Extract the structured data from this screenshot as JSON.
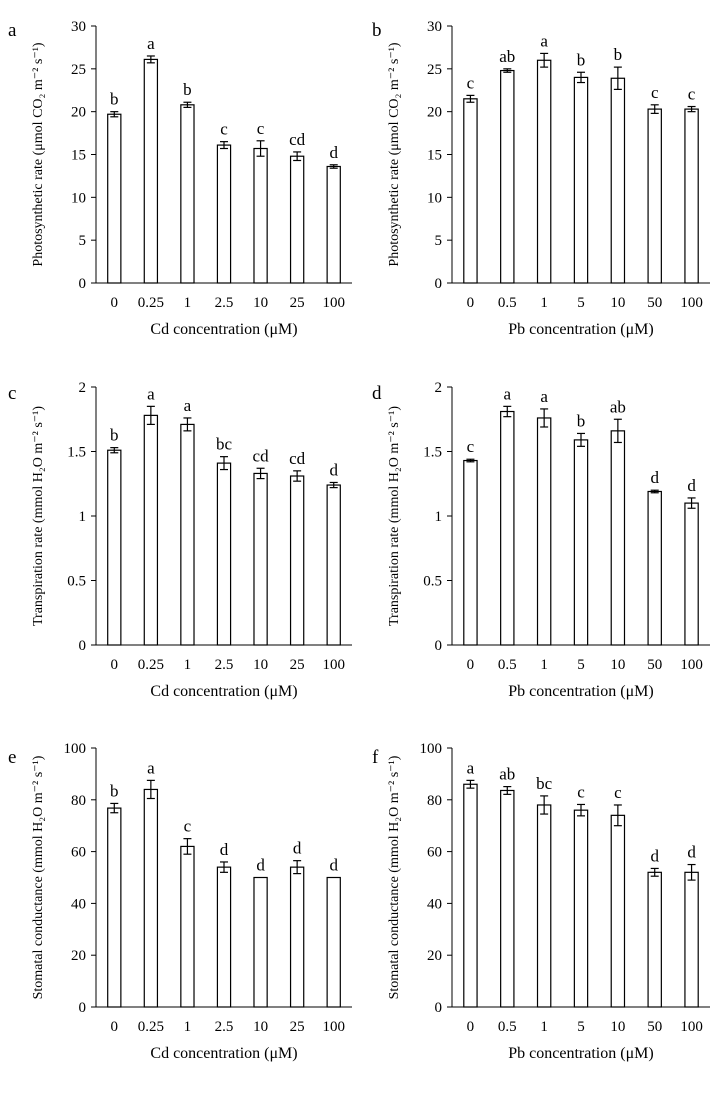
{
  "chart_data": [
    {
      "panel": "a",
      "type": "bar",
      "categories": [
        "0",
        "0.25",
        "1",
        "2.5",
        "10",
        "25",
        "100"
      ],
      "values": [
        19.7,
        26.1,
        20.8,
        16.1,
        15.7,
        14.8,
        13.6
      ],
      "errors": [
        0.3,
        0.4,
        0.3,
        0.4,
        0.9,
        0.5,
        0.2
      ],
      "letters": [
        "b",
        "a",
        "b",
        "c",
        "c",
        "cd",
        "d"
      ],
      "xlabel": "Cd concentration (μM)",
      "ylabel": "Photosynthetic rate (μmol CO₂ m⁻² s⁻¹)",
      "ylim": [
        0,
        30
      ],
      "yticks": [
        0,
        5,
        10,
        15,
        20,
        25,
        30
      ],
      "ytick_labels": [
        "0",
        "5",
        "10",
        "15",
        "20",
        "25",
        "30"
      ]
    },
    {
      "panel": "b",
      "type": "bar",
      "categories": [
        "0",
        "0.5",
        "1",
        "5",
        "10",
        "50",
        "100"
      ],
      "values": [
        21.5,
        24.8,
        26.0,
        24.0,
        23.9,
        20.3,
        20.3
      ],
      "errors": [
        0.4,
        0.2,
        0.8,
        0.6,
        1.3,
        0.5,
        0.3
      ],
      "letters": [
        "c",
        "ab",
        "a",
        "b",
        "b",
        "c",
        "c"
      ],
      "xlabel": "Pb concentration (μM)",
      "ylabel": "Photosynthetic rate (μmol CO₂ m⁻² s⁻¹)",
      "ylim": [
        0,
        30
      ],
      "yticks": [
        0,
        5,
        10,
        15,
        20,
        25,
        30
      ],
      "ytick_labels": [
        "0",
        "5",
        "10",
        "15",
        "20",
        "25",
        "30"
      ]
    },
    {
      "panel": "c",
      "type": "bar",
      "categories": [
        "0",
        "0.25",
        "1",
        "2.5",
        "10",
        "25",
        "100"
      ],
      "values": [
        1.51,
        1.78,
        1.71,
        1.41,
        1.33,
        1.31,
        1.24
      ],
      "errors": [
        0.02,
        0.07,
        0.05,
        0.05,
        0.04,
        0.04,
        0.02
      ],
      "letters": [
        "b",
        "a",
        "a",
        "bc",
        "cd",
        "cd",
        "d"
      ],
      "xlabel": "Cd concentration (μM)",
      "ylabel": "Transpiration rate (mmol H₂O m⁻² s⁻¹)",
      "ylim": [
        0,
        2
      ],
      "yticks": [
        0,
        0.5,
        1,
        1.5,
        2
      ],
      "ytick_labels": [
        "0",
        "0.5",
        "1",
        "1.5",
        "2"
      ]
    },
    {
      "panel": "d",
      "type": "bar",
      "categories": [
        "0",
        "0.5",
        "1",
        "5",
        "10",
        "50",
        "100"
      ],
      "values": [
        1.43,
        1.81,
        1.76,
        1.59,
        1.66,
        1.19,
        1.1
      ],
      "errors": [
        0.01,
        0.04,
        0.07,
        0.05,
        0.09,
        0.01,
        0.04
      ],
      "letters": [
        "c",
        "a",
        "a",
        "b",
        "ab",
        "d",
        "d"
      ],
      "xlabel": "Pb concentration (μM)",
      "ylabel": "Transpiration rate (mmol H₂O m⁻² s⁻¹)",
      "ylim": [
        0,
        2
      ],
      "yticks": [
        0,
        0.5,
        1,
        1.5,
        2
      ],
      "ytick_labels": [
        "0",
        "0.5",
        "1",
        "1.5",
        "2"
      ]
    },
    {
      "panel": "e",
      "type": "bar",
      "categories": [
        "0",
        "0.25",
        "1",
        "2.5",
        "10",
        "25",
        "100"
      ],
      "values": [
        76.8,
        84,
        62,
        54,
        50,
        54,
        50
      ],
      "errors": [
        1.8,
        3.5,
        3,
        2,
        0,
        2.5,
        0
      ],
      "letters": [
        "b",
        "a",
        "c",
        "d",
        "d",
        "d",
        "d"
      ],
      "xlabel": "Cd concentration (μM)",
      "ylabel": "Stomatal conductance (mmol H₂O m⁻² s⁻¹)",
      "ylim": [
        0,
        100
      ],
      "yticks": [
        0,
        20,
        40,
        60,
        80,
        100
      ],
      "ytick_labels": [
        "0",
        "20",
        "40",
        "60",
        "80",
        "100"
      ]
    },
    {
      "panel": "f",
      "type": "bar",
      "categories": [
        "0",
        "0.5",
        "1",
        "5",
        "10",
        "50",
        "100"
      ],
      "values": [
        86,
        83.6,
        78,
        76,
        74,
        52,
        52
      ],
      "errors": [
        1.5,
        1.5,
        3.5,
        2.2,
        4,
        1.5,
        3
      ],
      "letters": [
        "a",
        "ab",
        "bc",
        "c",
        "c",
        "d",
        "d"
      ],
      "xlabel": "Pb concentration (μM)",
      "ylabel": "Stomatal conductance (mmol H₂O m⁻² s⁻¹)",
      "ylim": [
        0,
        100
      ],
      "yticks": [
        0,
        20,
        40,
        60,
        80,
        100
      ],
      "ytick_labels": [
        "0",
        "20",
        "40",
        "60",
        "80",
        "100"
      ]
    }
  ]
}
